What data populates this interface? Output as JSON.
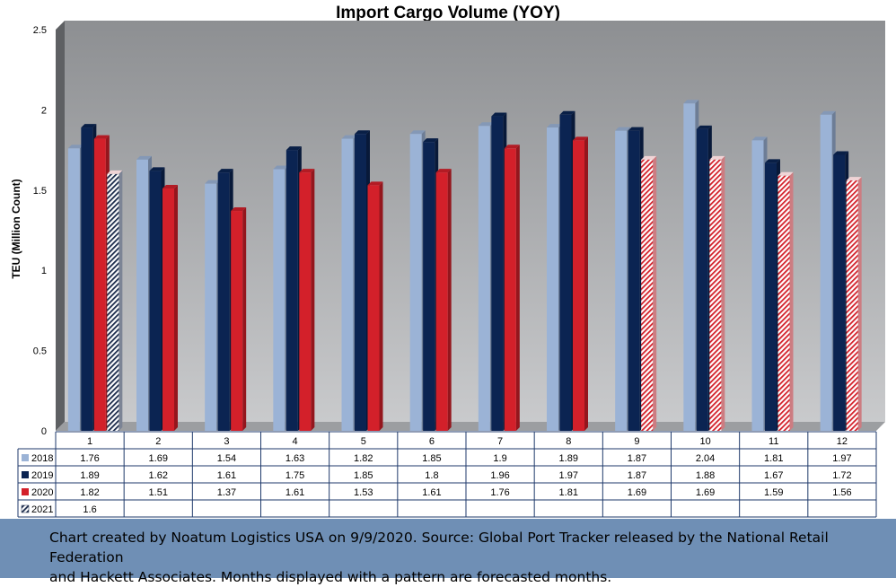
{
  "chart_data": {
    "type": "bar",
    "title": "Import Cargo Volume (YOY)",
    "ylabel": "TEU (Million Count)",
    "xlabel": "",
    "ylim": [
      0,
      2.5
    ],
    "yticks": [
      "0",
      "0.5",
      "1",
      "1.5",
      "2",
      "2.5"
    ],
    "categories": [
      "1",
      "2",
      "3",
      "4",
      "5",
      "6",
      "7",
      "8",
      "9",
      "10",
      "11",
      "12"
    ],
    "series": [
      {
        "name": "2018",
        "color": "#9bb3d6",
        "values": [
          1.76,
          1.69,
          1.54,
          1.63,
          1.82,
          1.85,
          1.9,
          1.89,
          1.87,
          2.04,
          1.81,
          1.97
        ],
        "labels": [
          "1.76",
          "1.69",
          "1.54",
          "1.63",
          "1.82",
          "1.85",
          "1.9",
          "1.89",
          "1.87",
          "2.04",
          "1.81",
          "1.97"
        ]
      },
      {
        "name": "2019",
        "color": "#0b2452",
        "values": [
          1.89,
          1.62,
          1.61,
          1.75,
          1.85,
          1.8,
          1.96,
          1.97,
          1.87,
          1.88,
          1.67,
          1.72
        ],
        "labels": [
          "1.89",
          "1.62",
          "1.61",
          "1.75",
          "1.85",
          "1.8",
          "1.96",
          "1.97",
          "1.87",
          "1.88",
          "1.67",
          "1.72"
        ]
      },
      {
        "name": "2020",
        "color": "#d3202a",
        "values": [
          1.82,
          1.51,
          1.37,
          1.61,
          1.53,
          1.61,
          1.76,
          1.81,
          1.69,
          1.69,
          1.59,
          1.56
        ],
        "labels": [
          "1.82",
          "1.51",
          "1.37",
          "1.61",
          "1.53",
          "1.61",
          "1.76",
          "1.81",
          "1.69",
          "1.69",
          "1.59",
          "1.56"
        ],
        "forecast_from_index": 8
      },
      {
        "name": "2021",
        "color": "#1a2a4a",
        "values": [
          1.6,
          null,
          null,
          null,
          null,
          null,
          null,
          null,
          null,
          null,
          null,
          null
        ],
        "labels": [
          "1.6",
          "",
          "",
          "",
          "",
          "",
          "",
          "",
          "",
          "",
          "",
          ""
        ],
        "forecast_from_index": 0
      }
    ],
    "legend": "data table below chart",
    "grid": false
  },
  "footer": {
    "line1": "Chart created by Noatum Logistics USA on 9/9/2020. Source: Global Port Tracker released by the National Retail Federation",
    "line2": "and Hackett Associates. Months displayed with a pattern are forecasted months."
  }
}
